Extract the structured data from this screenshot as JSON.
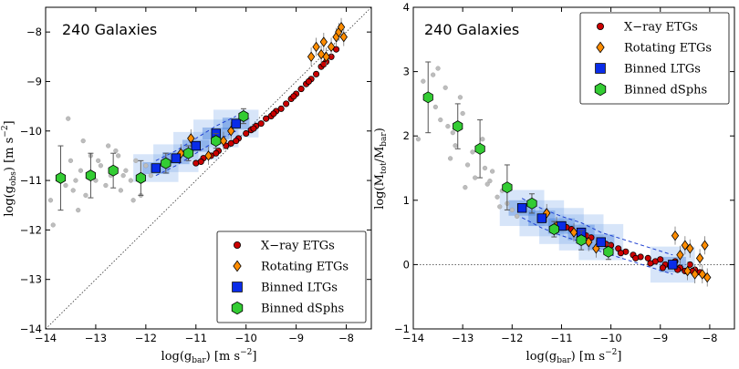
{
  "chart_data": [
    {
      "type": "scatter",
      "panel": "left",
      "annotation": "240 Galaxies",
      "xlabel": "log(g_bar) [m s^-2]",
      "ylabel": "log(g_obs) [m s^-2]",
      "xlim": [
        -14,
        -7.5
      ],
      "ylim": [
        -14,
        -7.5
      ],
      "xticks": [
        -14,
        -13,
        -12,
        -11,
        -10,
        -9,
        -8
      ],
      "yticks": [
        -14,
        -13,
        -12,
        -11,
        -10,
        -9,
        -8
      ],
      "xtick_labels": [
        "−14",
        "−13",
        "−12",
        "−11",
        "−10",
        "−9",
        "−8"
      ],
      "ytick_labels": [
        "−14",
        "−13",
        "−12",
        "−11",
        "−10",
        "−9",
        "−8"
      ],
      "reference_line": "one-to-one (dotted)",
      "legend_position": "lower-right",
      "series": [
        {
          "name": "X−ray ETGs",
          "marker": "circle",
          "color": "#cc0000",
          "x": [
            -11.0,
            -10.85,
            -10.7,
            -10.55,
            -10.4,
            -10.3,
            -10.15,
            -10.0,
            -9.9,
            -9.8,
            -9.7,
            -9.6,
            -9.5,
            -9.4,
            -9.3,
            -9.2,
            -9.1,
            -9.0,
            -8.9,
            -8.8,
            -8.7,
            -8.6,
            -8.5,
            -8.4,
            -8.3,
            -8.2,
            -10.9,
            -10.6,
            -10.2,
            -9.85,
            -9.45,
            -9.05,
            -8.75,
            -8.45
          ],
          "y": [
            -10.65,
            -10.55,
            -10.5,
            -10.4,
            -10.3,
            -10.25,
            -10.15,
            -10.05,
            -9.98,
            -9.9,
            -9.85,
            -9.75,
            -9.7,
            -9.6,
            -9.55,
            -9.45,
            -9.35,
            -9.25,
            -9.15,
            -9.05,
            -8.95,
            -8.85,
            -8.7,
            -8.6,
            -8.5,
            -8.35,
            -10.62,
            -10.45,
            -10.2,
            -9.95,
            -9.65,
            -9.3,
            -9.0,
            -8.65
          ]
        },
        {
          "name": "Rotating ETGs",
          "marker": "diamond",
          "color": "#ff8c00",
          "x": [
            -11.3,
            -11.1,
            -10.75,
            -10.45,
            -10.3,
            -8.7,
            -8.6,
            -8.5,
            -8.45,
            -8.4,
            -8.3,
            -8.2,
            -8.15,
            -8.1,
            -8.05
          ],
          "y": [
            -10.45,
            -10.15,
            -10.5,
            -10.2,
            -10.0,
            -8.5,
            -8.3,
            -8.45,
            -8.2,
            -8.5,
            -8.3,
            -8.1,
            -8.0,
            -7.9,
            -8.1
          ]
        },
        {
          "name": "Binned LTGs",
          "marker": "square",
          "color": "#0a2ce8",
          "x": [
            -11.8,
            -11.4,
            -11.0,
            -10.6,
            -10.2
          ],
          "y": [
            -10.75,
            -10.55,
            -10.3,
            -10.05,
            -9.85
          ]
        },
        {
          "name": "Binned dSphs",
          "marker": "hexagon",
          "color": "#33cc33",
          "x": [
            -13.7,
            -13.1,
            -12.65,
            -12.1,
            -11.6,
            -11.15,
            -10.6,
            -10.05
          ],
          "y": [
            -10.95,
            -10.9,
            -10.8,
            -10.95,
            -10.65,
            -10.45,
            -10.2,
            -9.7
          ],
          "yerr": [
            0.65,
            0.45,
            0.35,
            0.35,
            0.2,
            0.15,
            0.15,
            0.15
          ]
        }
      ],
      "background_points": {
        "x": [
          -13.9,
          -13.85,
          -13.7,
          -13.6,
          -13.5,
          -13.4,
          -13.3,
          -13.2,
          -13.1,
          -13.0,
          -12.9,
          -12.8,
          -12.7,
          -12.6,
          -12.5,
          -12.4,
          -12.3,
          -12.2,
          -12.1,
          -12.0,
          -11.9,
          -13.55,
          -13.25,
          -12.95,
          -12.55,
          -12.25,
          -13.35,
          -12.75,
          -12.45,
          -13.45
        ],
        "y": [
          -11.4,
          -11.9,
          -10.9,
          -11.1,
          -10.6,
          -11.0,
          -10.8,
          -11.3,
          -10.5,
          -11.0,
          -10.7,
          -11.1,
          -10.9,
          -10.4,
          -11.2,
          -10.8,
          -11.0,
          -10.6,
          -11.3,
          -10.7,
          -10.9,
          -9.75,
          -10.2,
          -10.6,
          -10.5,
          -11.4,
          -11.6,
          -10.3,
          -10.9,
          -11.2
        ]
      },
      "legend": [
        "X−ray ETGs",
        "Rotating ETGs",
        "Binned LTGs",
        "Binned dSphs"
      ]
    },
    {
      "type": "scatter",
      "panel": "right",
      "annotation": "240 Galaxies",
      "xlabel": "log(g_bar) [m s^-2]",
      "ylabel": "log(M_tot/M_bar)",
      "xlim": [
        -14,
        -7.5
      ],
      "ylim": [
        -1,
        4
      ],
      "xticks": [
        -14,
        -13,
        -12,
        -11,
        -10,
        -9,
        -8
      ],
      "yticks": [
        -1,
        0,
        1,
        2,
        3,
        4
      ],
      "xtick_labels": [
        "−14",
        "−13",
        "−12",
        "−11",
        "−10",
        "−9",
        "−8"
      ],
      "ytick_labels": [
        "−1",
        "0",
        "1",
        "2",
        "3",
        "4"
      ],
      "reference_line": "horizontal dotted at 0",
      "legend_position": "top-right",
      "series": [
        {
          "name": "X−ray ETGs",
          "marker": "circle",
          "color": "#cc0000",
          "x": [
            -11.0,
            -10.8,
            -10.6,
            -10.4,
            -10.2,
            -10.0,
            -9.85,
            -9.7,
            -9.55,
            -9.4,
            -9.25,
            -9.1,
            -9.0,
            -8.9,
            -8.8,
            -8.7,
            -8.6,
            -8.5,
            -8.4,
            -8.3,
            -8.2,
            -10.9,
            -10.5,
            -10.1,
            -9.8,
            -9.5,
            -9.2,
            -8.95,
            -8.65,
            -8.35
          ],
          "y": [
            0.62,
            0.55,
            0.5,
            0.42,
            0.35,
            0.3,
            0.25,
            0.2,
            0.15,
            0.12,
            0.1,
            0.05,
            0.08,
            0.0,
            -0.02,
            0.05,
            -0.05,
            -0.1,
            0.0,
            -0.08,
            -0.12,
            0.58,
            0.45,
            0.32,
            0.18,
            0.1,
            0.02,
            -0.05,
            -0.08,
            -0.1
          ]
        },
        {
          "name": "Rotating ETGs",
          "marker": "diamond",
          "color": "#ff8c00",
          "x": [
            -11.3,
            -11.1,
            -10.75,
            -10.45,
            -10.3,
            -8.7,
            -8.6,
            -8.5,
            -8.45,
            -8.4,
            -8.3,
            -8.2,
            -8.15,
            -8.1,
            -8.05
          ],
          "y": [
            0.8,
            0.6,
            0.5,
            0.35,
            0.25,
            0.45,
            0.15,
            0.3,
            -0.1,
            0.25,
            -0.15,
            0.1,
            -0.15,
            0.3,
            -0.2
          ]
        },
        {
          "name": "Binned LTGs",
          "marker": "square",
          "color": "#0a2ce8",
          "x": [
            -11.8,
            -11.4,
            -11.0,
            -10.6,
            -10.2,
            -8.75
          ],
          "y": [
            0.88,
            0.72,
            0.6,
            0.5,
            0.35,
            0.0
          ]
        },
        {
          "name": "Binned dSphs",
          "marker": "hexagon",
          "color": "#33cc33",
          "x": [
            -13.7,
            -13.1,
            -12.65,
            -12.1,
            -11.6,
            -11.15,
            -10.6,
            -10.05
          ],
          "y": [
            2.6,
            2.15,
            1.8,
            1.2,
            0.95,
            0.55,
            0.38,
            0.2
          ],
          "yerr": [
            0.55,
            0.35,
            0.45,
            0.35,
            0.15,
            0.12,
            0.15,
            0.12
          ]
        }
      ],
      "background_points": {
        "x": [
          -13.9,
          -13.8,
          -13.6,
          -13.5,
          -13.45,
          -13.35,
          -13.3,
          -13.2,
          -13.15,
          -13.0,
          -12.9,
          -12.8,
          -12.75,
          -12.6,
          -12.5,
          -12.4,
          -12.3,
          -12.2,
          -12.1,
          -12.0,
          -11.9,
          -13.55,
          -13.25,
          -12.95,
          -12.55,
          -12.25,
          -12.45,
          -13.05
        ],
        "y": [
          1.95,
          2.85,
          2.95,
          3.05,
          2.25,
          2.75,
          2.15,
          2.05,
          1.85,
          2.35,
          1.55,
          1.75,
          1.35,
          1.95,
          1.25,
          1.45,
          1.05,
          1.15,
          0.95,
          0.85,
          0.75,
          2.45,
          1.65,
          1.2,
          1.5,
          0.9,
          1.3,
          2.6
        ]
      },
      "legend": [
        "X−ray ETGs",
        "Rotating ETGs",
        "Binned LTGs",
        "Binned dSphs"
      ]
    }
  ]
}
